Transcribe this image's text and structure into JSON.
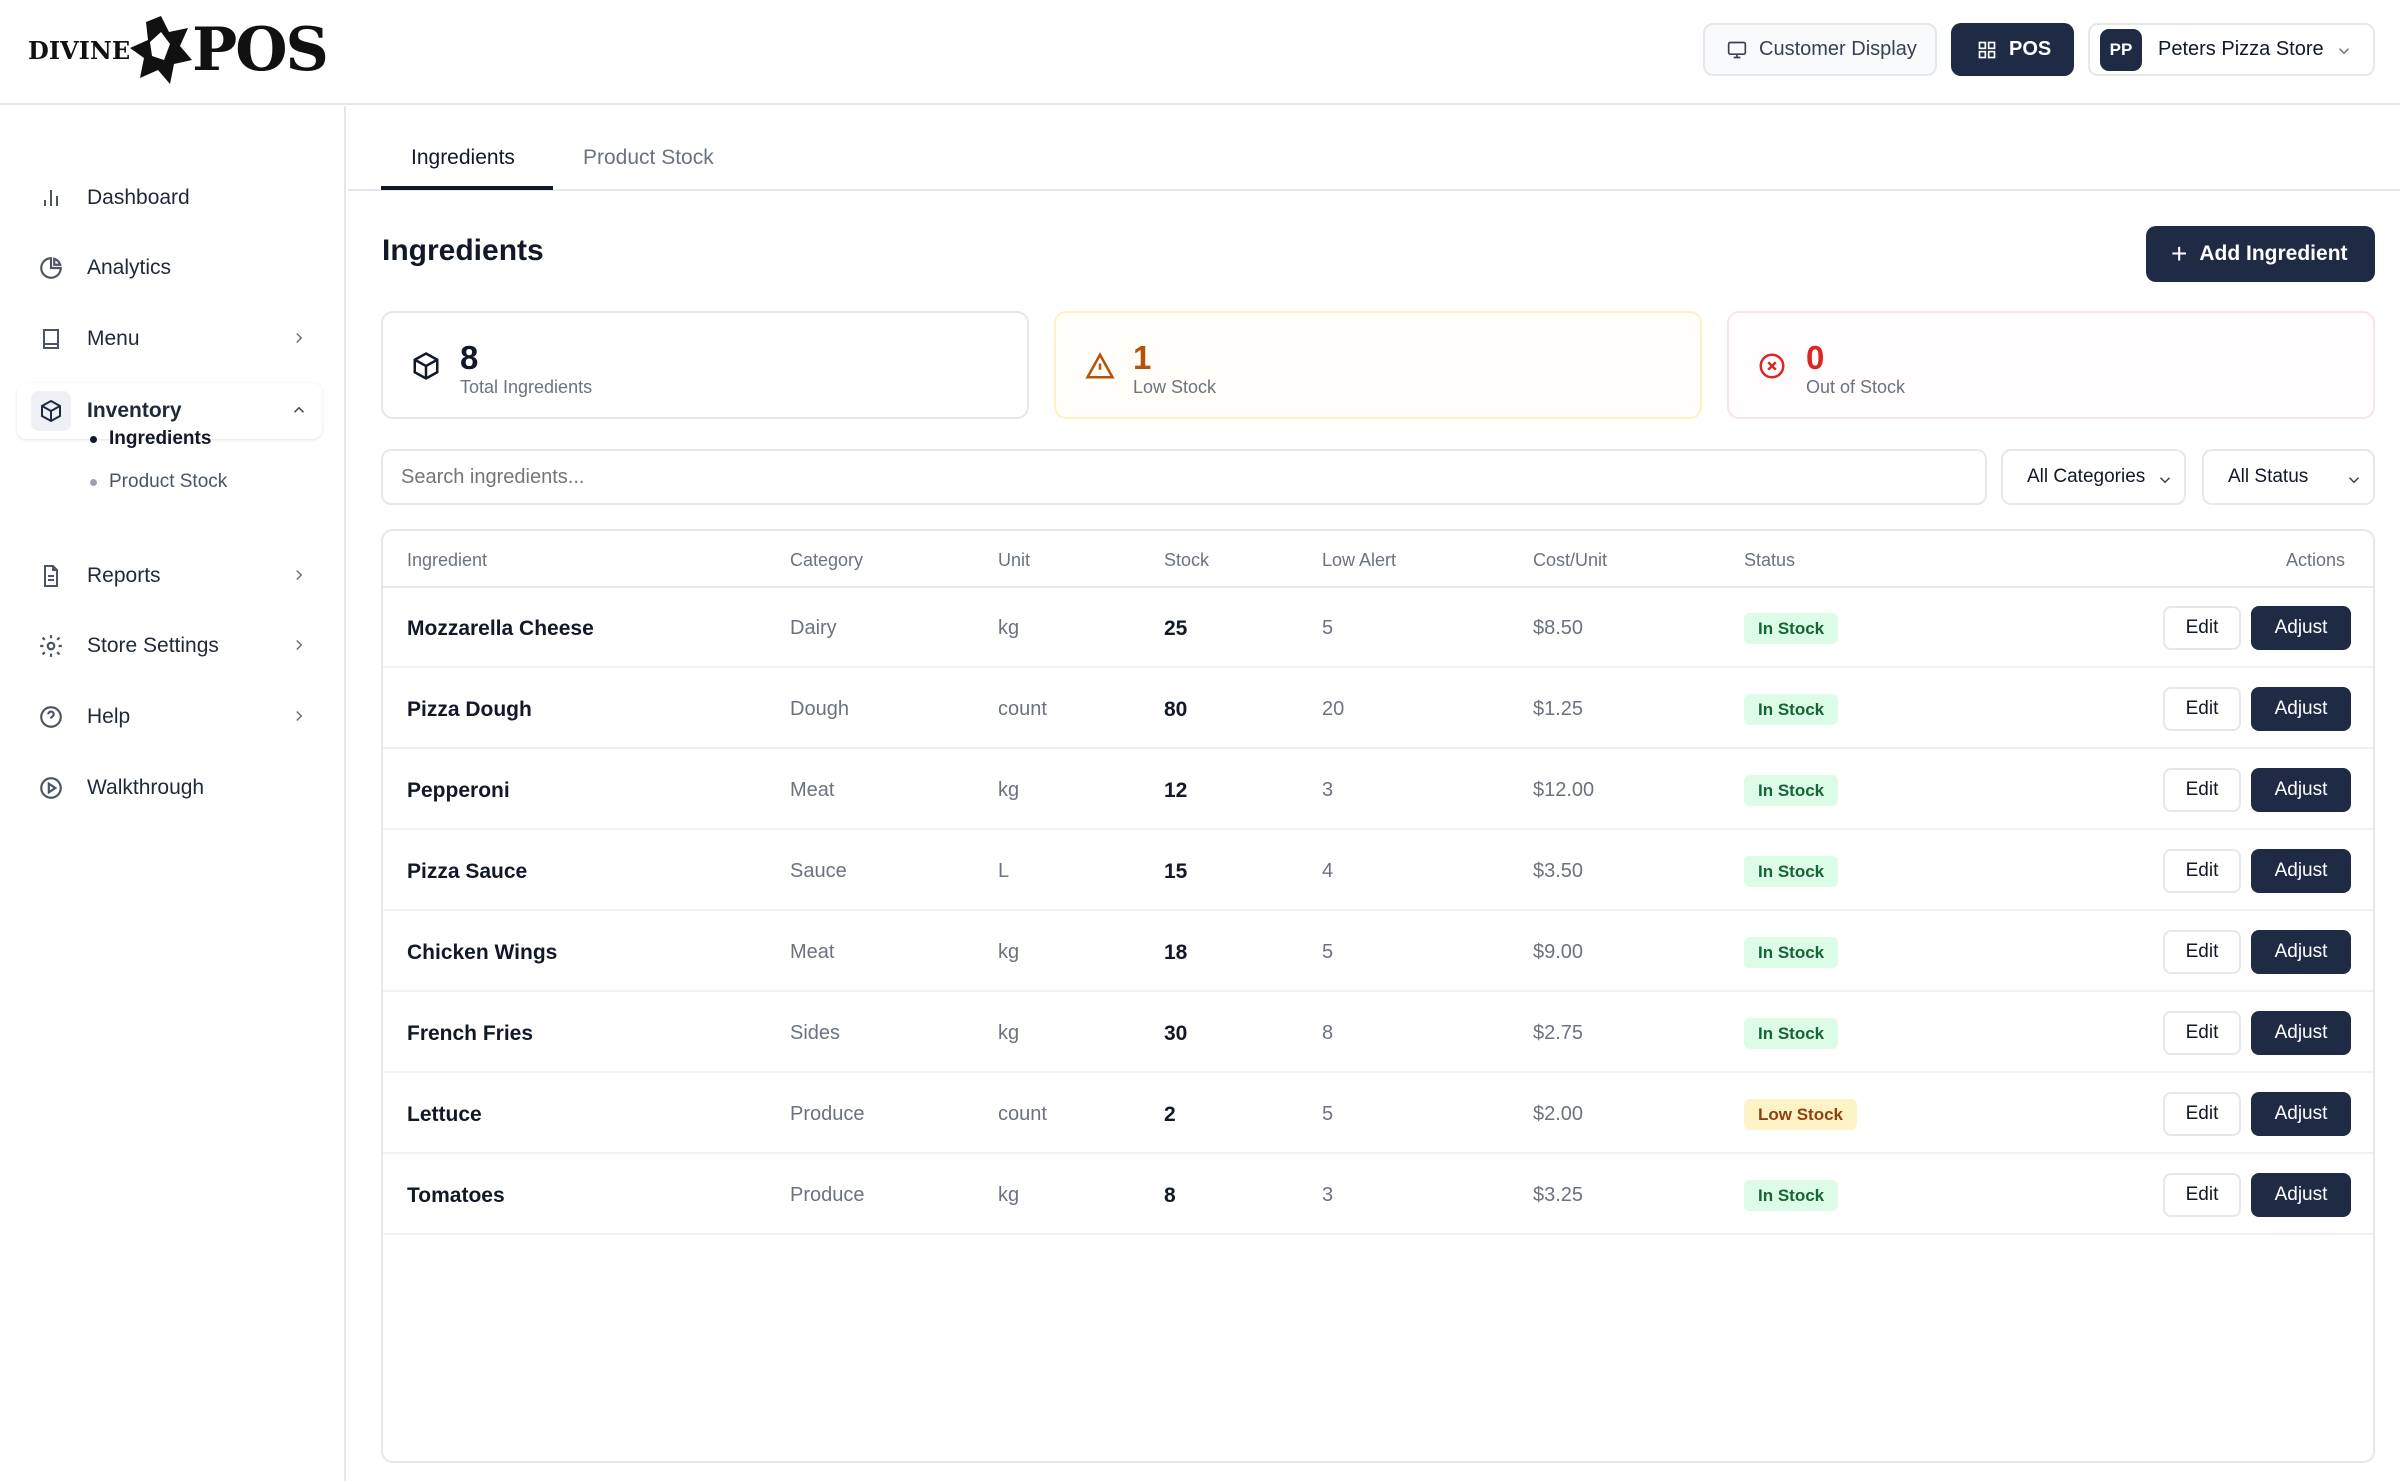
{
  "header": {
    "logo": {
      "left": "DIVINE",
      "right": "POS"
    },
    "customer_display_label": "Customer Display",
    "pos_label": "POS",
    "store_initials": "PP",
    "store_name": "Peters Pizza Store"
  },
  "sidebar": {
    "items": [
      {
        "label": "Dashboard",
        "icon": "bar-chart-icon"
      },
      {
        "label": "Analytics",
        "icon": "pie-chart-icon"
      },
      {
        "label": "Menu",
        "icon": "book-icon"
      },
      {
        "label": "Inventory",
        "icon": "package-icon"
      },
      {
        "label": "Reports",
        "icon": "file-text-icon"
      },
      {
        "label": "Store Settings",
        "icon": "gear-icon"
      },
      {
        "label": "Help",
        "icon": "help-circle-icon"
      },
      {
        "label": "Walkthrough",
        "icon": "play-circle-icon"
      }
    ],
    "inventory_sub": [
      "Ingredients",
      "Product Stock"
    ]
  },
  "tabs": [
    "Ingredients",
    "Product Stock"
  ],
  "page": {
    "title": "Ingredients",
    "add_button": "Add Ingredient"
  },
  "stats": [
    {
      "value": "8",
      "label": "Total Ingredients",
      "icon": "package-icon"
    },
    {
      "value": "1",
      "label": "Low Stock",
      "icon": "alert-triangle-icon",
      "color": "#b45309"
    },
    {
      "value": "0",
      "label": "Out of Stock",
      "icon": "x-circle-icon",
      "color": "#dc2626"
    }
  ],
  "search": {
    "placeholder": "Search ingredients..."
  },
  "filters": {
    "category": "All Categories",
    "status": "All Status"
  },
  "table": {
    "headers": [
      "Ingredient",
      "Category",
      "Unit",
      "Stock",
      "Low Alert",
      "Cost/Unit",
      "Status",
      "Actions"
    ],
    "edit_label": "Edit",
    "adjust_label": "Adjust",
    "rows": [
      {
        "name": "Mozzarella Cheese",
        "category": "Dairy",
        "unit": "kg",
        "stock": "25",
        "low_alert": "5",
        "cost": "$8.50",
        "status": "In Stock"
      },
      {
        "name": "Pizza Dough",
        "category": "Dough",
        "unit": "count",
        "stock": "80",
        "low_alert": "20",
        "cost": "$1.25",
        "status": "In Stock"
      },
      {
        "name": "Pepperoni",
        "category": "Meat",
        "unit": "kg",
        "stock": "12",
        "low_alert": "3",
        "cost": "$12.00",
        "status": "In Stock"
      },
      {
        "name": "Pizza Sauce",
        "category": "Sauce",
        "unit": "L",
        "stock": "15",
        "low_alert": "4",
        "cost": "$3.50",
        "status": "In Stock"
      },
      {
        "name": "Chicken Wings",
        "category": "Meat",
        "unit": "kg",
        "stock": "18",
        "low_alert": "5",
        "cost": "$9.00",
        "status": "In Stock"
      },
      {
        "name": "French Fries",
        "category": "Sides",
        "unit": "kg",
        "stock": "30",
        "low_alert": "8",
        "cost": "$2.75",
        "status": "In Stock"
      },
      {
        "name": "Lettuce",
        "category": "Produce",
        "unit": "count",
        "stock": "2",
        "low_alert": "5",
        "cost": "$2.00",
        "status": "Low Stock"
      },
      {
        "name": "Tomatoes",
        "category": "Produce",
        "unit": "kg",
        "stock": "8",
        "low_alert": "3",
        "cost": "$3.25",
        "status": "In Stock"
      }
    ]
  },
  "colors": {
    "primary": "#1f2a44",
    "in_stock_bg": "#dcfce7",
    "in_stock_text": "#166534",
    "low_stock_bg": "#fef3c7",
    "low_stock_text": "#92400e"
  }
}
